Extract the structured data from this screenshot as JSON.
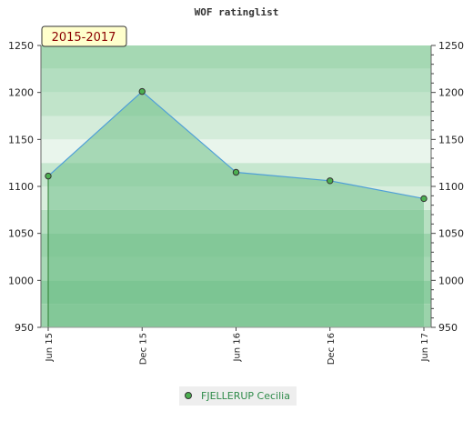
{
  "chart_data": {
    "type": "area",
    "title": "WOF ratinglist",
    "period_label": "2015-2017",
    "x": [
      "Jun 15",
      "Dec 15",
      "Jun 16",
      "Dec 16",
      "Jun 17"
    ],
    "series": [
      {
        "name": "FJELLERUP Cecilia",
        "values": [
          1111,
          1201,
          1115,
          1106,
          1087
        ]
      }
    ],
    "ylim": [
      950,
      1250
    ],
    "yticks": [
      950,
      1000,
      1050,
      1100,
      1150,
      1200,
      1250
    ],
    "grid": true,
    "legend_position": "bottom-center",
    "colors": {
      "line": "#4f9fd8",
      "area": "#6fbf88",
      "marker": "#4caf50",
      "period_bg": "#ffffcc"
    }
  }
}
